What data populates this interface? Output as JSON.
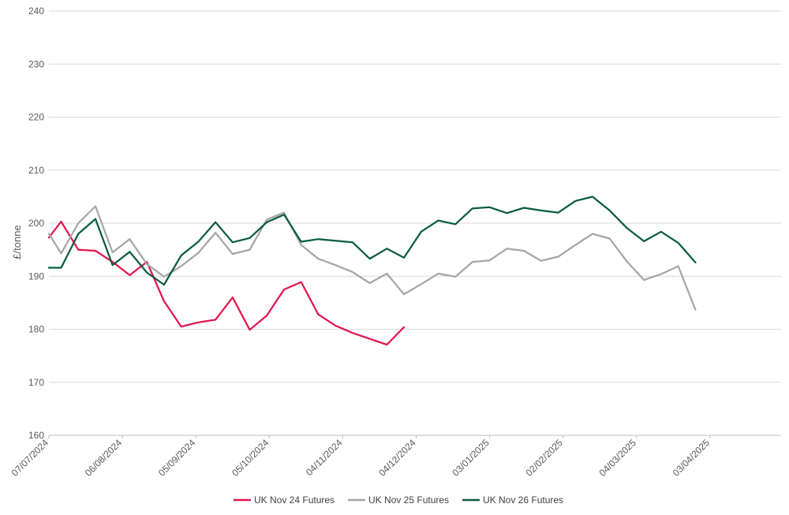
{
  "chart_data": {
    "type": "line",
    "title": "",
    "ylabel": "£/tonne",
    "xlabel": "",
    "ylim": [
      160,
      240
    ],
    "yticks": [
      160,
      170,
      180,
      190,
      200,
      210,
      220,
      230,
      240
    ],
    "xlim": [
      "2024-07-07",
      "2025-05-02"
    ],
    "xticks": [
      "07/07/2024",
      "06/08/2024",
      "05/09/2024",
      "05/10/2024",
      "04/11/2024",
      "04/12/2024",
      "03/01/2025",
      "02/02/2025",
      "04/03/2025",
      "03/04/2025"
    ],
    "grid": "horizontal",
    "legend_position": "bottom",
    "series": [
      {
        "name": "UK Nov 24 Futures",
        "color": "#e0174f",
        "x": [
          "2024-07-07",
          "2024-07-12",
          "2024-07-19",
          "2024-07-26",
          "2024-08-02",
          "2024-08-09",
          "2024-08-16",
          "2024-08-23",
          "2024-08-30",
          "2024-09-06",
          "2024-09-13",
          "2024-09-20",
          "2024-09-27",
          "2024-10-04",
          "2024-10-11",
          "2024-10-18",
          "2024-10-25",
          "2024-11-01",
          "2024-11-08",
          "2024-11-15",
          "2024-11-22",
          "2024-11-29"
        ],
        "values": [
          197.3,
          200.3,
          195.0,
          194.8,
          192.7,
          190.2,
          192.7,
          185.3,
          180.5,
          181.3,
          181.8,
          186.0,
          179.9,
          182.6,
          187.5,
          188.9,
          182.8,
          180.7,
          179.3,
          178.2,
          177.1,
          180.4
        ]
      },
      {
        "name": "UK Nov 25 Futures",
        "color": "#a6a6a6",
        "x": [
          "2024-07-07",
          "2024-07-12",
          "2024-07-19",
          "2024-07-26",
          "2024-08-02",
          "2024-08-09",
          "2024-08-16",
          "2024-08-23",
          "2024-08-30",
          "2024-09-06",
          "2024-09-13",
          "2024-09-20",
          "2024-09-27",
          "2024-10-04",
          "2024-10-11",
          "2024-10-18",
          "2024-10-25",
          "2024-11-01",
          "2024-11-08",
          "2024-11-15",
          "2024-11-22",
          "2024-11-29",
          "2024-12-06",
          "2024-12-13",
          "2024-12-20",
          "2024-12-27",
          "2025-01-03",
          "2025-01-10",
          "2025-01-17",
          "2025-01-24",
          "2025-01-31",
          "2025-02-07",
          "2025-02-14",
          "2025-02-21",
          "2025-02-28",
          "2025-03-07",
          "2025-03-14",
          "2025-03-21",
          "2025-03-28"
        ],
        "values": [
          198.0,
          194.3,
          200.0,
          203.2,
          194.5,
          197.0,
          192.3,
          189.9,
          191.9,
          194.4,
          198.2,
          194.2,
          195.0,
          200.7,
          202.0,
          195.9,
          193.3,
          192.1,
          190.8,
          188.7,
          190.5,
          186.6,
          188.5,
          190.5,
          189.9,
          192.7,
          193.0,
          195.2,
          194.8,
          192.9,
          193.7,
          195.9,
          198.0,
          197.1,
          192.8,
          189.3,
          190.4,
          191.9,
          183.7
        ]
      },
      {
        "name": "UK Nov 26 Futures",
        "color": "#0b5c3e",
        "x": [
          "2024-07-07",
          "2024-07-12",
          "2024-07-19",
          "2024-07-26",
          "2024-08-02",
          "2024-08-09",
          "2024-08-16",
          "2024-08-23",
          "2024-08-30",
          "2024-09-06",
          "2024-09-13",
          "2024-09-20",
          "2024-09-27",
          "2024-10-04",
          "2024-10-11",
          "2024-10-18",
          "2024-10-25",
          "2024-11-01",
          "2024-11-08",
          "2024-11-15",
          "2024-11-22",
          "2024-11-29",
          "2024-12-06",
          "2024-12-13",
          "2024-12-20",
          "2024-12-27",
          "2025-01-03",
          "2025-01-10",
          "2025-01-17",
          "2025-01-24",
          "2025-01-31",
          "2025-02-07",
          "2025-02-14",
          "2025-02-21",
          "2025-02-28",
          "2025-03-07",
          "2025-03-14",
          "2025-03-21",
          "2025-03-28"
        ],
        "values": [
          191.6,
          191.6,
          198.0,
          200.8,
          192.1,
          194.6,
          190.7,
          188.4,
          193.9,
          196.5,
          200.2,
          196.4,
          197.2,
          200.2,
          201.6,
          196.5,
          197.0,
          196.7,
          196.4,
          193.3,
          195.2,
          193.5,
          198.4,
          200.5,
          199.8,
          202.8,
          203.0,
          201.9,
          202.9,
          202.4,
          202.0,
          204.2,
          205.0,
          202.4,
          199.1,
          196.6,
          198.4,
          196.3,
          192.6
        ]
      }
    ]
  }
}
